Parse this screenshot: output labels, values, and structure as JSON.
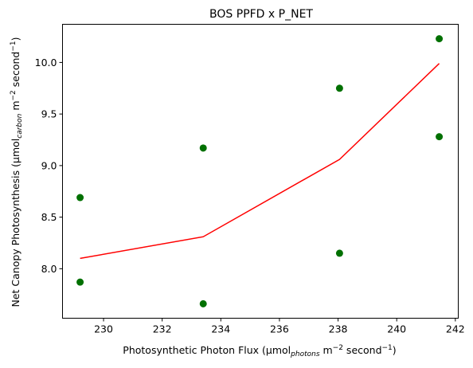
{
  "chart_data": {
    "type": "scatter",
    "title": "BOS PPFD x P_NET",
    "xlabel": {
      "prefix": "Photosynthetic Photon Flux (µmol",
      "subscript": "photons",
      "middle": " m",
      "sup1": "−2",
      "middle2": " second",
      "sup2": "−1",
      "suffix": ")"
    },
    "ylabel": {
      "prefix": "Net Canopy Photosynthesis (µmol",
      "subscript": "carbon",
      "middle": " m",
      "sup1": "−2",
      "middle2": " second",
      "sup2": "−1",
      "suffix": ")"
    },
    "xlim": [
      228.6,
      242.1
    ],
    "ylim": [
      7.52,
      10.37
    ],
    "xticks": [
      230,
      232,
      234,
      236,
      238,
      240,
      242
    ],
    "yticks": [
      8.0,
      8.5,
      9.0,
      9.5,
      10.0
    ],
    "ytick_labels": [
      "8.0",
      "8.5",
      "9.0",
      "9.5",
      "10.0"
    ],
    "grid": false,
    "series": [
      {
        "kind": "scatter",
        "color": "#007000",
        "x": [
          229.2,
          229.2,
          233.4,
          233.4,
          238.05,
          238.05,
          241.45,
          241.45
        ],
        "y": [
          8.69,
          7.87,
          9.17,
          7.66,
          9.75,
          8.15,
          10.23,
          9.28
        ]
      },
      {
        "kind": "line",
        "color": "#ff0000",
        "x": [
          229.2,
          233.4,
          238.05,
          241.45
        ],
        "y": [
          8.1,
          8.31,
          9.06,
          9.99
        ]
      }
    ]
  }
}
